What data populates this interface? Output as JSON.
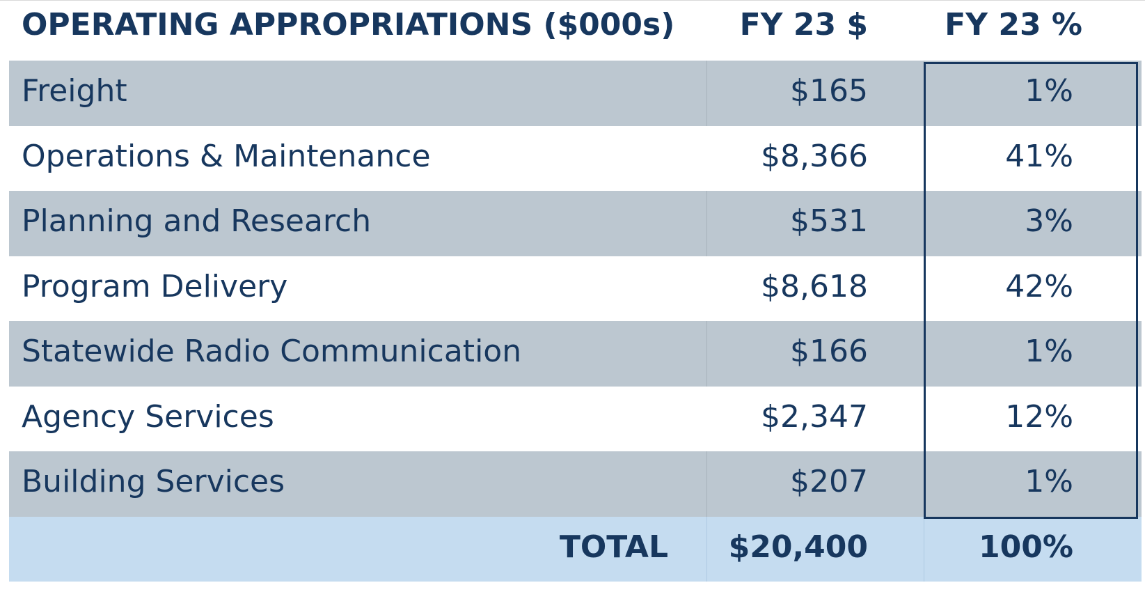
{
  "table": {
    "header": {
      "label": "OPERATING APPROPRIATIONS ($000s)",
      "amount": "FY 23 $",
      "percent": "FY 23 %"
    },
    "rows": [
      {
        "label": "Freight",
        "amount": "$165",
        "percent": "1%"
      },
      {
        "label": "Operations & Maintenance",
        "amount": "$8,366",
        "percent": "41%"
      },
      {
        "label": "Planning and Research",
        "amount": "$531",
        "percent": "3%"
      },
      {
        "label": "Program Delivery",
        "amount": "$8,618",
        "percent": "42%"
      },
      {
        "label": "Statewide Radio Communication",
        "amount": "$166",
        "percent": "1%"
      },
      {
        "label": "Agency Services",
        "amount": "$2,347",
        "percent": "12%"
      },
      {
        "label": "Building Services",
        "amount": "$207",
        "percent": "1%"
      }
    ],
    "total": {
      "label": "TOTAL",
      "amount": "$20,400",
      "percent": "100%"
    }
  },
  "colors": {
    "text": "#17375e",
    "shaded_row": "#bcc7d0",
    "total_row": "#c5dcf0",
    "highlight_border": "#17375e"
  }
}
